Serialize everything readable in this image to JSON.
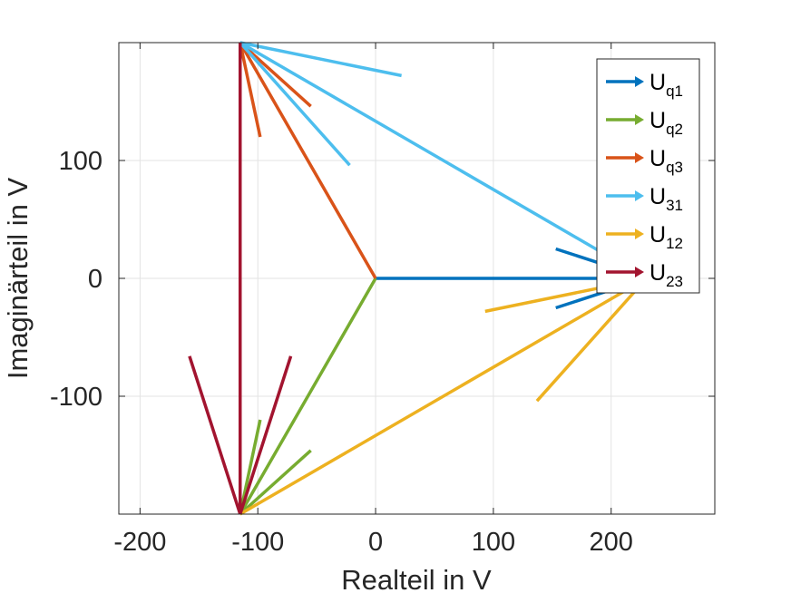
{
  "chart_data": {
    "type": "line",
    "subtype": "phasor-diagram",
    "xlabel": "Realteil in V",
    "ylabel": "Imaginärteil in V",
    "xlim": [
      -218,
      288
    ],
    "ylim": [
      -200,
      200
    ],
    "xticks": [
      -200,
      -100,
      0,
      100,
      200
    ],
    "xtick_labels": [
      "-200",
      "-100",
      "0",
      "100",
      "200"
    ],
    "yticks": [
      -100,
      0,
      100
    ],
    "ytick_labels": [
      "-100",
      "0",
      "100"
    ],
    "grid": true,
    "legend_position": "top-right",
    "series": [
      {
        "name": "U",
        "subscript": "q1",
        "color": "#0072BD",
        "from": [
          0,
          0
        ],
        "to": [
          230,
          0
        ],
        "arrowhead": [
          [
            153,
            25
          ],
          [
            153,
            -25
          ]
        ]
      },
      {
        "name": "U",
        "subscript": "q2",
        "color": "#77AC30",
        "from": [
          0,
          0
        ],
        "to": [
          -115,
          -200
        ],
        "arrowhead": [
          [
            -98,
            -120
          ],
          [
            -55,
            -146
          ]
        ]
      },
      {
        "name": "U",
        "subscript": "q3",
        "color": "#D95319",
        "from": [
          0,
          0
        ],
        "to": [
          -115,
          200
        ],
        "arrowhead": [
          [
            -98,
            120
          ],
          [
            -55,
            146
          ]
        ]
      },
      {
        "name": "U",
        "subscript": "31",
        "color": "#4DBEEE",
        "from": [
          230,
          0
        ],
        "to": [
          -115,
          200
        ],
        "arrowhead": [
          [
            -22,
            96
          ],
          [
            22,
            172
          ]
        ]
      },
      {
        "name": "U",
        "subscript": "12",
        "color": "#EDB120",
        "from": [
          -115,
          -200
        ],
        "to": [
          230,
          0
        ],
        "arrowhead": [
          [
            93,
            -28
          ],
          [
            137,
            -104
          ]
        ]
      },
      {
        "name": "U",
        "subscript": "23",
        "color": "#A2142F",
        "from": [
          -115,
          200
        ],
        "to": [
          -115,
          -200
        ],
        "arrowhead": [
          [
            -158,
            -66
          ],
          [
            -72,
            -66
          ]
        ]
      }
    ]
  }
}
